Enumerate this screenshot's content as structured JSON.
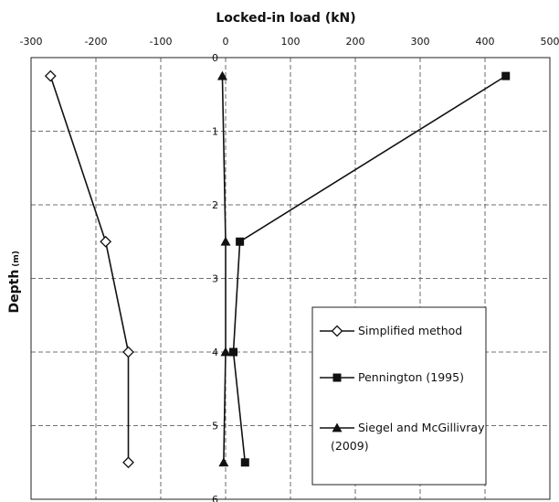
{
  "chart_data": {
    "type": "line",
    "xlabel": "Locked-in load (kN)",
    "ylabel": "Depth",
    "ylabel_unit": "(m)",
    "xlim": [
      -300,
      500
    ],
    "ylim": [
      0,
      6
    ],
    "y_inverted": true,
    "x_axis_position": "top",
    "xticks": [
      -300,
      -200,
      -100,
      0,
      100,
      200,
      300,
      400,
      500
    ],
    "xtick_labels": [
      "-300",
      "-200",
      "-100",
      "0",
      "100",
      "200",
      "300",
      "400",
      "500"
    ],
    "yticks": [
      0,
      1,
      2,
      3,
      4,
      5,
      6
    ],
    "ytick_labels": [
      "0",
      "1",
      "2",
      "3",
      "4",
      "5",
      "6"
    ],
    "grid": true,
    "legend_position": "bottom-right",
    "series": [
      {
        "name": "Simplified method",
        "marker": "open-diamond",
        "color": "#111111",
        "x": [
          -270,
          -185,
          -150,
          -150
        ],
        "y": [
          0.25,
          2.5,
          4.0,
          5.5
        ]
      },
      {
        "name": "Pennington (1995)",
        "marker": "filled-square",
        "color": "#111111",
        "x": [
          432,
          22,
          12,
          30
        ],
        "y": [
          0.25,
          2.5,
          4.0,
          5.5
        ]
      },
      {
        "name": "Siegel and McGillivray (2009)",
        "marker": "filled-triangle",
        "color": "#111111",
        "x": [
          -5,
          0,
          0,
          -3
        ],
        "y": [
          0.25,
          2.5,
          4.0,
          5.5
        ]
      }
    ]
  }
}
